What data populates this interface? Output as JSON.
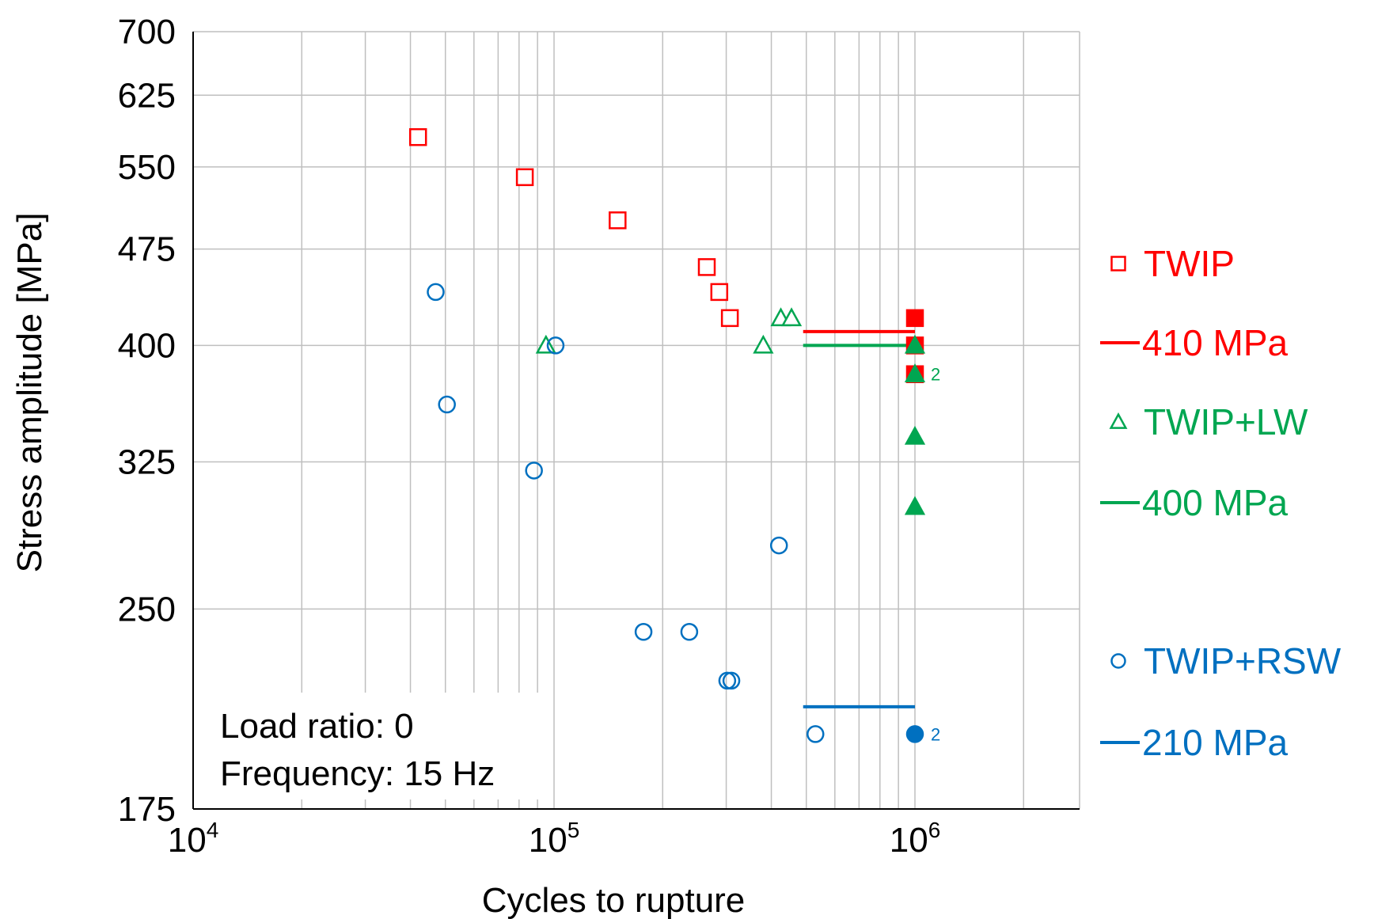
{
  "chart_data": {
    "type": "scatter",
    "title": "",
    "xlabel": "Cycles to rupture",
    "ylabel": "Stress amplitude [MPa]",
    "x_scale": "log",
    "y_scale": "log",
    "xlim": [
      10000,
      3000000
    ],
    "ylim": [
      175,
      700
    ],
    "x_ticks": [
      {
        "value": 10000,
        "base": "10",
        "exp": "4"
      },
      {
        "value": 100000,
        "base": "10",
        "exp": "5"
      },
      {
        "value": 1000000,
        "base": "10",
        "exp": "6"
      }
    ],
    "y_ticks": [
      175,
      250,
      325,
      400,
      475,
      550,
      625,
      700
    ],
    "grid": true,
    "legend_position": "right",
    "annotation_lines": [
      "Load ratio: 0",
      "Frequency: 15 Hz"
    ],
    "series": [
      {
        "name": "TWIP",
        "marker": "square",
        "color": "#ff0000",
        "open_points": [
          [
            42000,
            580
          ],
          [
            83000,
            540
          ],
          [
            150000,
            500
          ],
          [
            265000,
            460
          ],
          [
            287000,
            440
          ],
          [
            307000,
            420
          ]
        ],
        "filled_points": [
          [
            1000000,
            420
          ],
          [
            1000000,
            400
          ],
          [
            1000000,
            380
          ]
        ]
      },
      {
        "name": "TWIP+LW",
        "marker": "triangle",
        "color": "#00a651",
        "open_points": [
          [
            95000,
            400
          ],
          [
            380000,
            400
          ],
          [
            425000,
            420
          ],
          [
            455000,
            420
          ]
        ],
        "filled_points": [
          [
            1000000,
            400
          ],
          [
            1000000,
            380
          ],
          [
            1000000,
            340
          ],
          [
            1000000,
            300
          ]
        ],
        "point_labels": [
          {
            "x": 1000000,
            "y": 380,
            "text": "2"
          }
        ]
      },
      {
        "name": "TWIP+RSW",
        "marker": "circle",
        "color": "#0070c0",
        "open_points": [
          [
            47000,
            440
          ],
          [
            50500,
            360
          ],
          [
            88000,
            320
          ],
          [
            101000,
            400
          ],
          [
            420000,
            280
          ],
          [
            177000,
            240
          ],
          [
            237000,
            240
          ],
          [
            302000,
            220
          ],
          [
            310000,
            220
          ],
          [
            530000,
            200
          ]
        ],
        "filled_points": [
          [
            1000000,
            200
          ]
        ],
        "point_labels": [
          {
            "x": 1000000,
            "y": 200,
            "text": "2"
          }
        ]
      }
    ],
    "limit_lines": [
      {
        "name": "410 MPa",
        "y": 410,
        "x_from": 490000,
        "x_to": 1000000,
        "color": "#ff0000"
      },
      {
        "name": "400 MPa",
        "y": 400,
        "x_from": 490000,
        "x_to": 1000000,
        "color": "#00a651"
      },
      {
        "name": "210 MPa",
        "y": 210,
        "x_from": 490000,
        "x_to": 1000000,
        "color": "#0070c0"
      }
    ],
    "legend": [
      {
        "label": "TWIP",
        "kind": "square",
        "color": "#ff0000"
      },
      {
        "label": "410 MPa",
        "kind": "line",
        "color": "#ff0000"
      },
      {
        "label": "TWIP+LW",
        "kind": "triangle",
        "color": "#00a651"
      },
      {
        "label": "400 MPa",
        "kind": "line",
        "color": "#00a651"
      },
      {
        "label": "TWIP+RSW",
        "kind": "circle",
        "color": "#0070c0"
      },
      {
        "label": "210 MPa",
        "kind": "line",
        "color": "#0070c0"
      }
    ]
  }
}
